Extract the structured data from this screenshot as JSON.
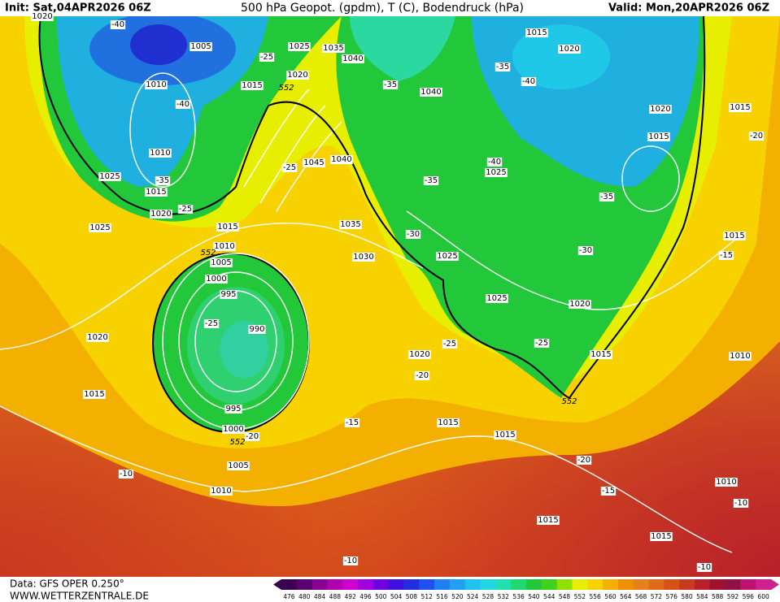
{
  "header": {
    "init": "Init: Sat,04APR2026 06Z",
    "title": "500 hPa Geopot. (gpdm), T (C), Bodendruck (hPa)",
    "valid": "Valid: Mon,20APR2026 06Z"
  },
  "footer": {
    "data_source": "Data: GFS OPER 0.250°",
    "website": "WWW.WETTERZENTRALE.DE"
  },
  "colorbar": {
    "labels": [
      "476",
      "480",
      "484",
      "488",
      "492",
      "496",
      "500",
      "504",
      "508",
      "512",
      "516",
      "520",
      "524",
      "528",
      "532",
      "536",
      "540",
      "544",
      "548",
      "552",
      "556",
      "560",
      "564",
      "568",
      "572",
      "576",
      "580",
      "584",
      "588",
      "592",
      "596",
      "600"
    ]
  },
  "map_labels": [
    "1020",
    "-40",
    "1005",
    "1010",
    "-40",
    "1015",
    "-25",
    "1025",
    "1035",
    "1040",
    "1020",
    "552",
    "-35",
    "1040",
    "1015",
    "1020",
    "-35",
    "-40",
    "1020",
    "1015",
    "-20",
    "1015",
    "1010",
    "-35",
    "1015",
    "1025",
    "1020",
    "-25",
    "-25",
    "1045",
    "1040",
    "-40",
    "1025",
    "-35",
    "-35",
    "1025",
    "1015",
    "1035",
    "-30",
    "1015",
    "-15",
    "1010",
    "552",
    "1005",
    "1030",
    "1025",
    "-30",
    "1000",
    "995",
    "1025",
    "1020",
    "-25",
    "990",
    "1020",
    "-25",
    "-25",
    "1020",
    "1015",
    "1010",
    "-20",
    "1015",
    "552",
    "995",
    "-15",
    "1015",
    "1000",
    "-20",
    "552",
    "1015",
    "1005",
    "-20",
    "-10",
    "1010",
    "-15",
    "1010",
    "-10",
    "1015",
    "1015",
    "-10",
    "-10"
  ]
}
